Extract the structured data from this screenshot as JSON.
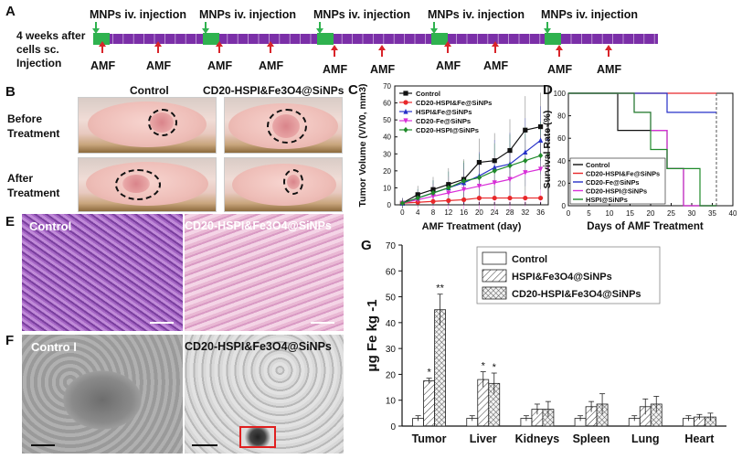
{
  "panels": {
    "A": "A",
    "B": "B",
    "C": "C",
    "D": "D",
    "E": "E",
    "F": "F",
    "G": "G"
  },
  "timeline": {
    "left_label": [
      "4 weeks after",
      "cells sc.",
      "Injection"
    ],
    "injection_label": "MNPs iv. injection",
    "amf_label": "AMF",
    "colors": {
      "bar": "#7b2fa8",
      "injection": "#2fb24f",
      "arrow_red": "#d9242a",
      "arrow_green": "#2fb24f"
    }
  },
  "panel_b": {
    "col_control": "Control",
    "col_treat": "CD20-HSPI&Fe3O4@SiNPs",
    "row_before": [
      "Before",
      "Treatment"
    ],
    "row_after": [
      "After",
      "Treatment"
    ]
  },
  "panel_e": {
    "left": "Control",
    "right": "CD20-HSPI&Fe3O4@SiNPs"
  },
  "panel_f": {
    "left": "Contro l",
    "right": "CD20-HSPI&Fe3O4@SiNPs"
  },
  "chart_data": [
    {
      "id": "C",
      "type": "line",
      "title": "",
      "xlabel": "AMF Treatment (day)",
      "ylabel": "Tumor Volume (V/V0, mm3)",
      "xlim": [
        -2,
        38
      ],
      "ylim": [
        0,
        70
      ],
      "x": [
        0,
        4,
        8,
        12,
        16,
        20,
        24,
        28,
        32,
        36
      ],
      "xticks": [
        0,
        4,
        8,
        12,
        16,
        20,
        24,
        28,
        32,
        36
      ],
      "yticks": [
        0,
        10,
        20,
        30,
        40,
        50,
        60,
        70
      ],
      "series": [
        {
          "name": "Control",
          "color": "#111111",
          "marker": "square",
          "values": [
            1,
            6,
            9,
            12,
            15,
            25,
            26,
            32,
            44,
            46
          ],
          "sig": "*"
        },
        {
          "name": "CD20-HSPI&Fe@SiNPs",
          "color": "#e8282a",
          "marker": "circle",
          "values": [
            1,
            1.5,
            2,
            2.5,
            3,
            4,
            4,
            4,
            4,
            4
          ],
          "sig": ""
        },
        {
          "name": "HSPI&Fe@SiNPs",
          "color": "#2630c8",
          "marker": "triangle",
          "values": [
            1,
            4,
            7,
            10,
            13,
            17,
            22,
            24,
            31,
            38
          ],
          "sig": "*"
        },
        {
          "name": "CD20-Fe@SiNPs",
          "color": "#d82fd8",
          "marker": "triangle-down",
          "values": [
            1,
            3,
            5,
            7,
            9,
            11,
            13,
            15,
            19,
            21
          ],
          "sig": "*"
        },
        {
          "name": "CD20-HSPI@SiNPs",
          "color": "#1f8a2a",
          "marker": "diamond",
          "values": [
            1,
            4,
            7,
            10,
            14,
            16,
            20,
            23,
            26,
            29
          ],
          "sig": "*"
        }
      ]
    },
    {
      "id": "D",
      "type": "line",
      "title": "",
      "xlabel": "Days of AMF Treatment",
      "ylabel": "Survival Rate (%)",
      "xlim": [
        0,
        40
      ],
      "ylim": [
        0,
        100
      ],
      "xticks": [
        0,
        5,
        10,
        15,
        20,
        25,
        30,
        35,
        40
      ],
      "yticks": [
        0,
        20,
        40,
        60,
        80,
        100
      ],
      "series": [
        {
          "name": "Control",
          "color": "#111111",
          "steps": [
            [
              0,
              100
            ],
            [
              12,
              100
            ],
            [
              12,
              67
            ],
            [
              24,
              67
            ],
            [
              24,
              33
            ],
            [
              28,
              33
            ],
            [
              28,
              0
            ],
            [
              36,
              0
            ]
          ]
        },
        {
          "name": "CD20-HSPI&Fe@SiNPs",
          "color": "#e8282a",
          "steps": [
            [
              0,
              100
            ],
            [
              36,
              100
            ]
          ]
        },
        {
          "name": "CD20-Fe@SiNPs",
          "color": "#2630c8",
          "steps": [
            [
              0,
              100
            ],
            [
              24,
              100
            ],
            [
              24,
              83
            ],
            [
              36,
              83
            ]
          ]
        },
        {
          "name": "CD20-HSPI@SiNPs",
          "color": "#d82fd8",
          "steps": [
            [
              0,
              100
            ],
            [
              16,
              100
            ],
            [
              16,
              83
            ],
            [
              20,
              83
            ],
            [
              20,
              67
            ],
            [
              24,
              67
            ],
            [
              24,
              33
            ],
            [
              28,
              33
            ],
            [
              28,
              0
            ],
            [
              36,
              0
            ]
          ]
        },
        {
          "name": "HSPI@SiNPs",
          "color": "#1f8a2a",
          "steps": [
            [
              0,
              100
            ],
            [
              16,
              100
            ],
            [
              16,
              83
            ],
            [
              20,
              83
            ],
            [
              20,
              50
            ],
            [
              24,
              50
            ],
            [
              24,
              33
            ],
            [
              32,
              33
            ],
            [
              32,
              0
            ],
            [
              36,
              0
            ]
          ]
        }
      ]
    },
    {
      "id": "G",
      "type": "bar",
      "title": "",
      "xlabel": "",
      "ylabel": "μg Fe kg -1",
      "ylim": [
        0,
        70
      ],
      "yticks": [
        0,
        10,
        20,
        30,
        40,
        50,
        60,
        70
      ],
      "categories": [
        "Tumor",
        "Liver",
        "Kidneys",
        "Spleen",
        "Lung",
        "Heart"
      ],
      "series": [
        {
          "name": "Control",
          "pattern": "none",
          "values": [
            3,
            3,
            3,
            3,
            3,
            3
          ],
          "errors": [
            1,
            1,
            1,
            1,
            1,
            1
          ]
        },
        {
          "name": "HSPI&Fe3O4@SiNPs",
          "pattern": "hatch",
          "values": [
            17.5,
            18,
            6.5,
            7.5,
            7.5,
            3.5
          ],
          "errors": [
            1,
            3,
            2,
            2,
            3,
            1
          ]
        },
        {
          "name": "CD20-HSPI&Fe3O4@SiNPs",
          "pattern": "cross",
          "values": [
            45,
            16.5,
            6.5,
            8.5,
            8.5,
            3.5
          ],
          "errors": [
            6,
            4,
            3,
            4,
            3,
            1.5
          ]
        }
      ],
      "annotations": [
        {
          "category": "Tumor",
          "series": 1,
          "text": "*"
        },
        {
          "category": "Tumor",
          "series": 2,
          "text": "**"
        },
        {
          "category": "Liver",
          "series": 1,
          "text": "*"
        },
        {
          "category": "Liver",
          "series": 2,
          "text": "*"
        }
      ]
    }
  ]
}
